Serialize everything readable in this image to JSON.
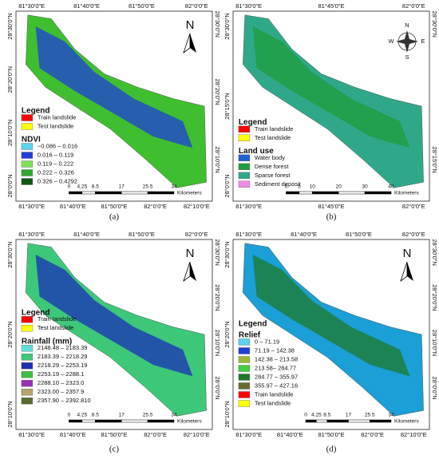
{
  "panels": [
    {
      "caption": "(a)",
      "top": [
        "81°30'0\"E",
        "81°40'0\"E",
        "81°50'0\"E",
        "82°0'0\"E"
      ],
      "bottom": [
        "81°30'0\"E",
        "81°40'0\"E",
        "81°50'0\"E",
        "82°0'0\"E",
        "82°10'0\"E"
      ],
      "left": [
        "28°30'0\"N",
        "28°20'0\"N",
        "28°10'0\"N",
        "28°0'0\"N"
      ],
      "right": [
        "28°30'0\"N",
        "28°20'0\"N",
        "28°10'0\"N"
      ],
      "compass": {
        "n": "N"
      },
      "legend": [
        {
          "heading": "Legend"
        },
        {
          "label": "Train landslide",
          "color": "#ff0000"
        },
        {
          "label": "Test landslide",
          "color": "#ffff00"
        },
        {
          "heading": "NDVI"
        },
        {
          "label": "−0.086 – 0.016",
          "color": "#5ad2f0"
        },
        {
          "label": "0.016 – 0.119",
          "color": "#1f3fd8"
        },
        {
          "label": "0.119 – 0.222",
          "color": "#7fe05a"
        },
        {
          "label": "0.222 – 0.326",
          "color": "#2fa82f"
        },
        {
          "label": "0.326 – 0.4292",
          "color": "#0c5a10"
        }
      ],
      "scale": {
        "ticks": [
          0,
          4.25,
          8.5,
          17,
          25.5,
          34
        ],
        "unit": "Kilometers"
      }
    },
    {
      "caption": "(b)",
      "top": [
        "81°30'0\"E",
        "81°45'0\"E",
        "82°0'0\"E"
      ],
      "bottom": [
        "81°30'0\"E",
        "81°45'0\"E",
        "82°0'0\"E"
      ],
      "left": [
        "28°30'0\"N",
        "28°15'0\"N",
        "28°0'0\"N"
      ],
      "right": [
        "28°30'0\"N",
        "28°15'0\"N"
      ],
      "compass": {
        "n": "N",
        "e": "E",
        "s": "S",
        "w": "W"
      },
      "legend": [
        {
          "heading": "Legend"
        },
        {
          "label": "Train landslide",
          "color": "#ff0000"
        },
        {
          "label": "Test landslide",
          "color": "#ffff00"
        },
        {
          "heading": "Land use"
        },
        {
          "label": "Water body",
          "color": "#1f5fd8"
        },
        {
          "label": "Dense forest",
          "color": "#1e9e3a"
        },
        {
          "label": "Sparse forest",
          "color": "#2fa88a"
        },
        {
          "label": "Sediment deposit",
          "color": "#f08ae8"
        }
      ],
      "scale": {
        "ticks": [
          0,
          5,
          10,
          20,
          30,
          40
        ],
        "unit": "Kilometers"
      }
    },
    {
      "caption": "(c)",
      "top": [
        "81°30'0\"E",
        "81°40'0\"E",
        "81°50'0\"E",
        "82°0'0\"E"
      ],
      "bottom": [
        "81°30'0\"E",
        "81°40'0\"E",
        "81°50'0\"E",
        "82°0'0\"E",
        "82°10'0\"E"
      ],
      "left": [
        "28°30'0\"N",
        "28°20'0\"N",
        "28°10'0\"N"
      ],
      "right": [
        "28°30'0\"N",
        "28°20'0\"N",
        "28°10'0\"N",
        "28°0'0\"N"
      ],
      "compass": {
        "n": "N"
      },
      "legend": [
        {
          "heading": "Legend"
        },
        {
          "label": "Train landslide",
          "color": "#ff0000"
        },
        {
          "label": "Test landslide",
          "color": "#ffff00"
        },
        {
          "heading": "Rainfall (mm)"
        },
        {
          "label": "2148.48 – 2183.39",
          "color": "#5ee0d8"
        },
        {
          "label": "2183.39 – 2218.29",
          "color": "#3cc878"
        },
        {
          "label": "2218.29 – 2253.19",
          "color": "#1a2fb8"
        },
        {
          "label": "2253.19 – 2288.1",
          "color": "#3fbf3f"
        },
        {
          "label": "2288.10 – 2323.0",
          "color": "#9a2fb8"
        },
        {
          "label": "2323.00 – 2357.9",
          "color": "#b4a46a"
        },
        {
          "label": "2357.90 – 2392.810",
          "color": "#5a6a30"
        }
      ],
      "scale": {
        "ticks": [
          0,
          4.25,
          8.5,
          17,
          25.5,
          34
        ],
        "unit": "Kilometers"
      }
    },
    {
      "caption": "(d)",
      "top": [
        "81°30'0\"E",
        "81°40'0\"E",
        "81°50'0\"E",
        "82°0'0\"E"
      ],
      "bottom": [
        "81°30'0\"E",
        "81°40'0\"E",
        "81°50'0\"E",
        "82°0'0\"E",
        "82°10'0\"E"
      ],
      "left": [
        "28°30'0\"N",
        "28°20'0\"N",
        "28°10'0\"N"
      ],
      "right": [
        "28°30'0\"N",
        "28°20'0\"N",
        "28°10'0\"N",
        "28°0'0\"N"
      ],
      "compass": {
        "n": "N"
      },
      "legend": [
        {
          "heading": "Legend"
        },
        {
          "heading": "Relief"
        },
        {
          "label": "0 – 71.19",
          "color": "#5ad2f0"
        },
        {
          "label": "71.19 – 142.38",
          "color": "#1f3fd8"
        },
        {
          "label": "142.38 – 213.58",
          "color": "#9ab830"
        },
        {
          "label": "213.58– 284.77",
          "color": "#3fcf3f"
        },
        {
          "label": "284.77 – 355.97",
          "color": "#1e7a2a"
        },
        {
          "label": "355.97 – 427.16",
          "color": "#6a6a30"
        },
        {
          "label": "Train landslide",
          "color": "#ff0000"
        },
        {
          "label": "Test landslide",
          "color": "#ffff00"
        }
      ],
      "scale": {
        "ticks": [
          0,
          4.25,
          8.5,
          17,
          25.5,
          34
        ],
        "unit": "Kilometers"
      }
    }
  ]
}
